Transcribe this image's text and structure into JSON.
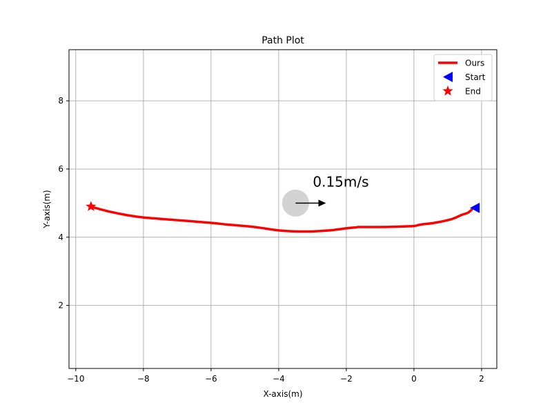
{
  "chart_data": {
    "type": "line",
    "title": "Path Plot",
    "xlabel": "X-axis(m)",
    "ylabel": "Y-axis(m)",
    "xlim": [
      -10.2,
      2.45
    ],
    "ylim": [
      0.15,
      9.5
    ],
    "xticks": [
      -10,
      -8,
      -6,
      -4,
      -2,
      0,
      2
    ],
    "xtick_labels": [
      "−10",
      "−8",
      "−6",
      "−4",
      "−2",
      "0",
      "2"
    ],
    "yticks": [
      2,
      4,
      6,
      8
    ],
    "ytick_labels": [
      "2",
      "4",
      "6",
      "8"
    ],
    "grid": true,
    "legend_position": "top-right",
    "series": [
      {
        "name": "Ours",
        "color": "#ff0000",
        "x": [
          1.72,
          1.6,
          1.4,
          1.2,
          1.0,
          0.6,
          0.2,
          0.0,
          -0.5,
          -1.0,
          -1.6,
          -1.7,
          -2.0,
          -2.5,
          -3.0,
          -3.5,
          -4.0,
          -4.5,
          -4.8,
          -5.5,
          -6.0,
          -7.0,
          -8.0,
          -8.5,
          -9.0,
          -9.5
        ],
        "y": [
          4.82,
          4.72,
          4.65,
          4.56,
          4.5,
          4.42,
          4.37,
          4.33,
          4.31,
          4.3,
          4.3,
          4.29,
          4.26,
          4.2,
          4.17,
          4.17,
          4.2,
          4.27,
          4.31,
          4.37,
          4.42,
          4.5,
          4.58,
          4.65,
          4.75,
          4.88
        ]
      }
    ],
    "markers": [
      {
        "name": "Start",
        "shape": "triangle-left",
        "color": "#0000ff",
        "x": 1.8,
        "y": 4.86
      },
      {
        "name": "End",
        "shape": "star",
        "color": "#ff0000",
        "x": -9.55,
        "y": 4.9
      }
    ],
    "obstacle": {
      "x": -3.5,
      "y": 5.0,
      "radius": 0.4,
      "color": "#d3d3d3",
      "velocity_x": 0.9,
      "label": "0.15m/s"
    }
  }
}
